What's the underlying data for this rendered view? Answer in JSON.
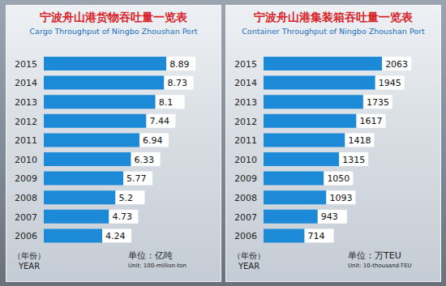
{
  "chart_data": [
    {
      "type": "bar",
      "orientation": "horizontal",
      "title": "宁波舟山港货物吞吐量一览表",
      "subtitle": "Cargo Throughput of Ningbo Zhoushan Port",
      "categories": [
        "2015",
        "2014",
        "2013",
        "2012",
        "2011",
        "2010",
        "2009",
        "2008",
        "2007",
        "2006"
      ],
      "values": [
        8.89,
        8.73,
        8.1,
        7.44,
        6.94,
        6.33,
        5.77,
        5.2,
        4.73,
        4.24
      ],
      "color": "#1c8ad6",
      "xlim": [
        0,
        10
      ],
      "data_labels": true,
      "tick_labels": "y",
      "y_label": "（年份）",
      "y_label_en": "YEAR",
      "unit": "单位：亿吨",
      "unit_en": "Unit: 100-million-ton"
    },
    {
      "type": "bar",
      "orientation": "horizontal",
      "title": "宁波舟山港集装箱吞吐量一览表",
      "subtitle": "Container Throughput of Ningbo Zhoushan Port",
      "categories": [
        "2015",
        "2014",
        "2013",
        "2012",
        "2011",
        "2010",
        "2009",
        "2008",
        "2007",
        "2006"
      ],
      "values": [
        2063,
        1945,
        1735,
        1617,
        1418,
        1315,
        1050,
        1093,
        943,
        714
      ],
      "color": "#1c8ad6",
      "xlim": [
        0,
        2400
      ],
      "data_labels": true,
      "tick_labels": "y",
      "y_label": "（年份）",
      "y_label_en": "YEAR",
      "unit": "单位：万TEU",
      "unit_en": "Unit: 10-thousand-TEU"
    }
  ]
}
